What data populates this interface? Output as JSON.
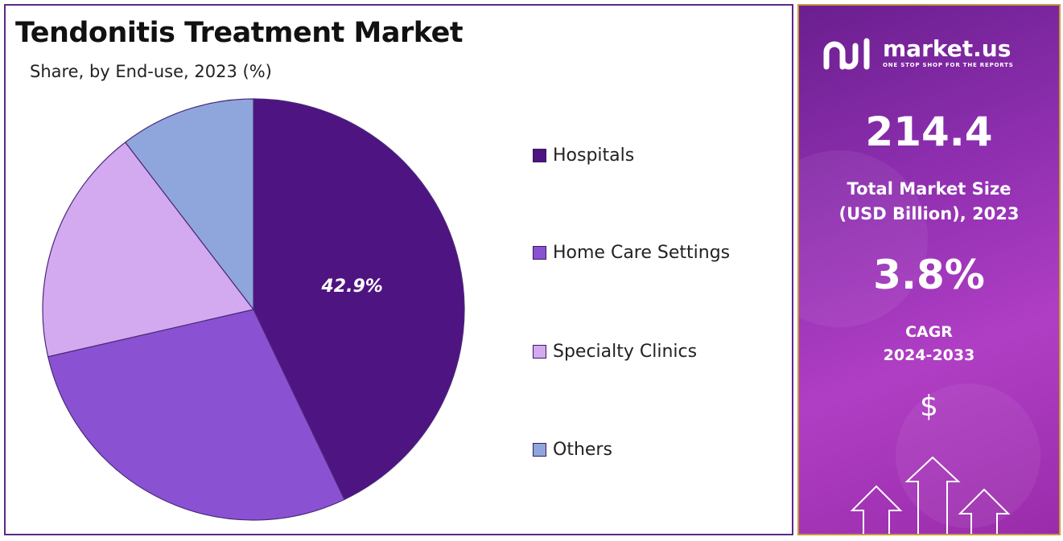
{
  "chart_data": {
    "type": "pie",
    "title": "Tendonitis Treatment Market",
    "subtitle": "Share, by End-use, 2023 (%)",
    "categories": [
      "Hospitals",
      "Home Care Settings",
      "Specialty Clinics",
      "Others"
    ],
    "values": [
      42.9,
      28.5,
      18.2,
      10.4
    ],
    "data_labels": [
      "42.9%",
      "",
      "",
      ""
    ],
    "colors": [
      "#4e1482",
      "#8a52d2",
      "#d3a9f0",
      "#8fa6dc"
    ],
    "legend_position": "right"
  },
  "side_panel": {
    "brand_name": "market.us",
    "brand_tagline": "ONE STOP SHOP FOR THE REPORTS",
    "market_size_value": "214.4",
    "market_size_label_line1": "Total Market Size",
    "market_size_label_line2": "(USD Billion), 2023",
    "cagr_value": "3.8%",
    "cagr_label_line1": "CAGR",
    "cagr_label_line2": "2024-2033",
    "dollar_symbol": "$"
  }
}
